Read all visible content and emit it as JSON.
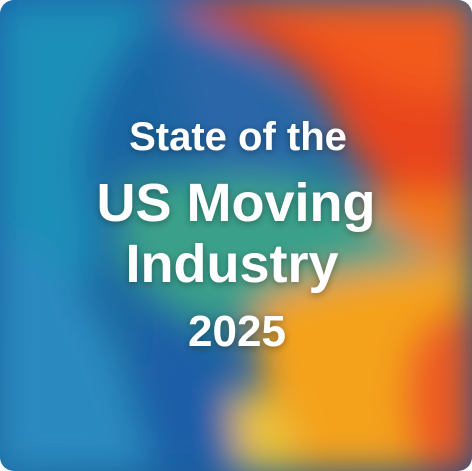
{
  "cover": {
    "title": {
      "line1": "State of the",
      "line2": "US Moving",
      "line3": "Industry",
      "line4": "2025"
    }
  }
}
